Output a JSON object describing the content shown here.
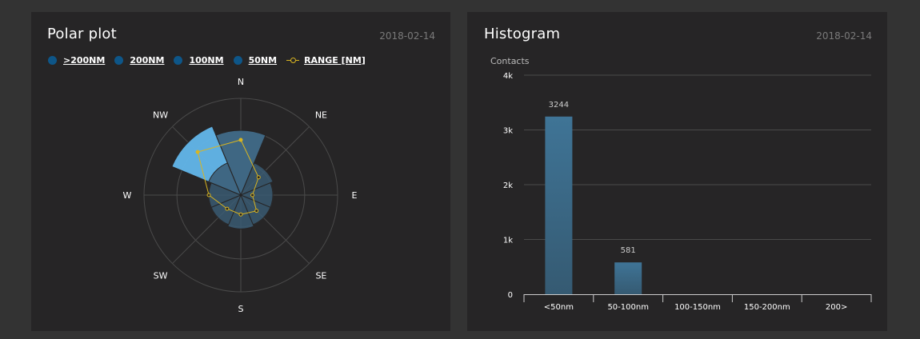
{
  "polar_panel": {
    "title": "Polar plot",
    "date": "2018-02-14",
    "legend": [
      {
        "label": ">200NM",
        "color": "#0e5688",
        "type": "dot"
      },
      {
        "label": "200NM",
        "color": "#0e5688",
        "type": "dot"
      },
      {
        "label": "100NM",
        "color": "#0e5688",
        "type": "dot"
      },
      {
        "label": "50NM",
        "color": "#0e5688",
        "type": "dot"
      },
      {
        "label": "RANGE [NM]",
        "color": "#d9b521",
        "type": "line"
      }
    ]
  },
  "hist_panel": {
    "title": "Histogram",
    "date": "2018-02-14"
  },
  "colors": {
    "background": "#333333",
    "panel": "#262526",
    "sector_outer": "#62b6ea",
    "sector_outer_alt": "#5aaad8",
    "sector_inner": "#3a5a72",
    "range_line": "#d9b521",
    "bar": "#3b6b8a",
    "grid": "#4a4a4a"
  },
  "chart_data": [
    {
      "type": "polar",
      "directions": [
        "N",
        "NE",
        "E",
        "SE",
        "S",
        "SW",
        "W",
        "NW"
      ],
      "sectors": [
        {
          "angle_deg": 0,
          "outer": 0.67,
          "inner": 0.67
        },
        {
          "angle_deg": 45,
          "outer": 0.0,
          "inner": 0.36
        },
        {
          "angle_deg": 90,
          "outer": 0.0,
          "inner": 0.33
        },
        {
          "angle_deg": 135,
          "outer": 0.0,
          "inner": 0.33
        },
        {
          "angle_deg": 180,
          "outer": 0.0,
          "inner": 0.35
        },
        {
          "angle_deg": 225,
          "outer": 0.0,
          "inner": 0.33
        },
        {
          "angle_deg": 270,
          "outer": 0.0,
          "inner": 0.33
        },
        {
          "angle_deg": 315,
          "outer": 0.77,
          "inner": 0.36
        }
      ],
      "range_series": {
        "name": "RANGE [NM]",
        "values": [
          0.57,
          0.26,
          0.12,
          0.23,
          0.2,
          0.2,
          0.33,
          0.63
        ]
      }
    },
    {
      "type": "bar",
      "ylabel": "Contacts",
      "categories": [
        "<50nm",
        "50-100nm",
        "100-150nm",
        "150-200nm",
        "200>"
      ],
      "values": [
        3244,
        581,
        0,
        0,
        0
      ],
      "value_labels": [
        "3244",
        "581",
        "",
        "",
        ""
      ],
      "ylim": [
        0,
        4000
      ],
      "yticks": [
        0,
        1000,
        2000,
        3000,
        4000
      ],
      "ytick_labels": [
        "0",
        "1k",
        "2k",
        "3k",
        "4k"
      ]
    }
  ]
}
